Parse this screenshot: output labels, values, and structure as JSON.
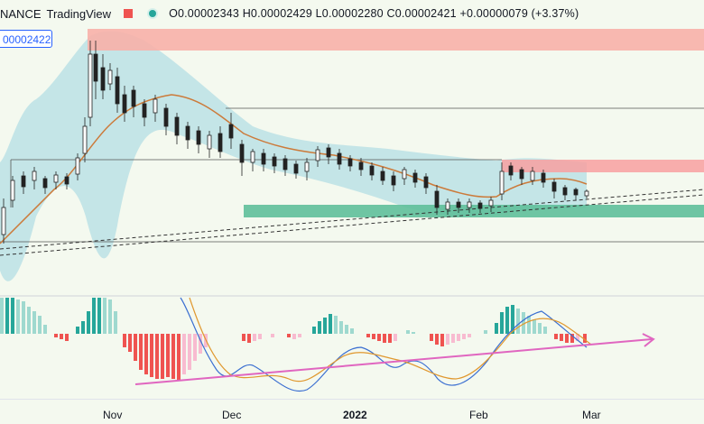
{
  "header": {
    "symbol": "NANCE",
    "brand": "TradingView",
    "ohlc": "O0.00002343 H0.00002429 L0.00002280 C0.00002421 +0.00000079 (+3.37%)"
  },
  "price_tag": "00002422",
  "x_axis": {
    "nov": "Nov",
    "dec": "Dec",
    "y2022": "2022",
    "feb": "Feb",
    "mar": "Mar"
  },
  "colors": {
    "bg": "#f4f9ef",
    "bull": "#26a69a",
    "bear": "#ef5350",
    "band": "#add8e6",
    "ma": "#d2691e",
    "trend": "#e066c0"
  }
}
